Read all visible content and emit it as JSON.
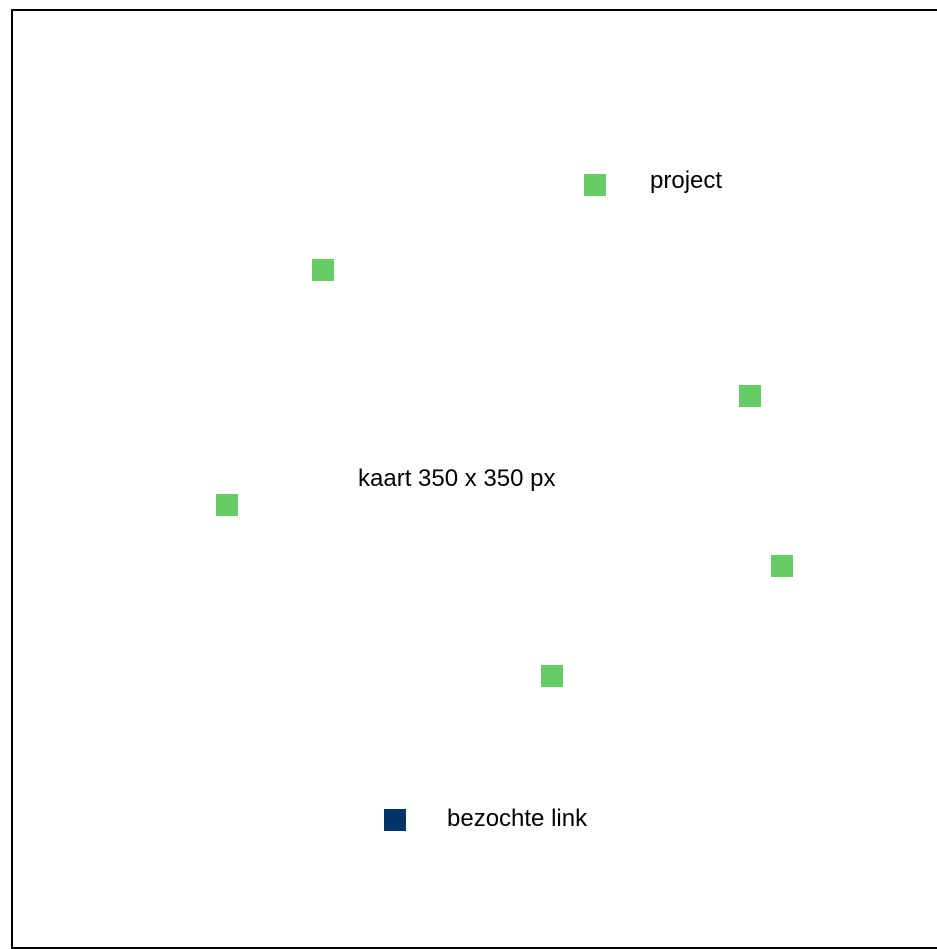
{
  "map": {
    "caption": "kaart 350 x 350 px"
  },
  "legend": {
    "project_label": "project",
    "visited_label": "bezochte link"
  },
  "colors": {
    "project": "#66cc66",
    "visited": "#003366",
    "border": "#000000"
  },
  "project_marker_count": 6
}
